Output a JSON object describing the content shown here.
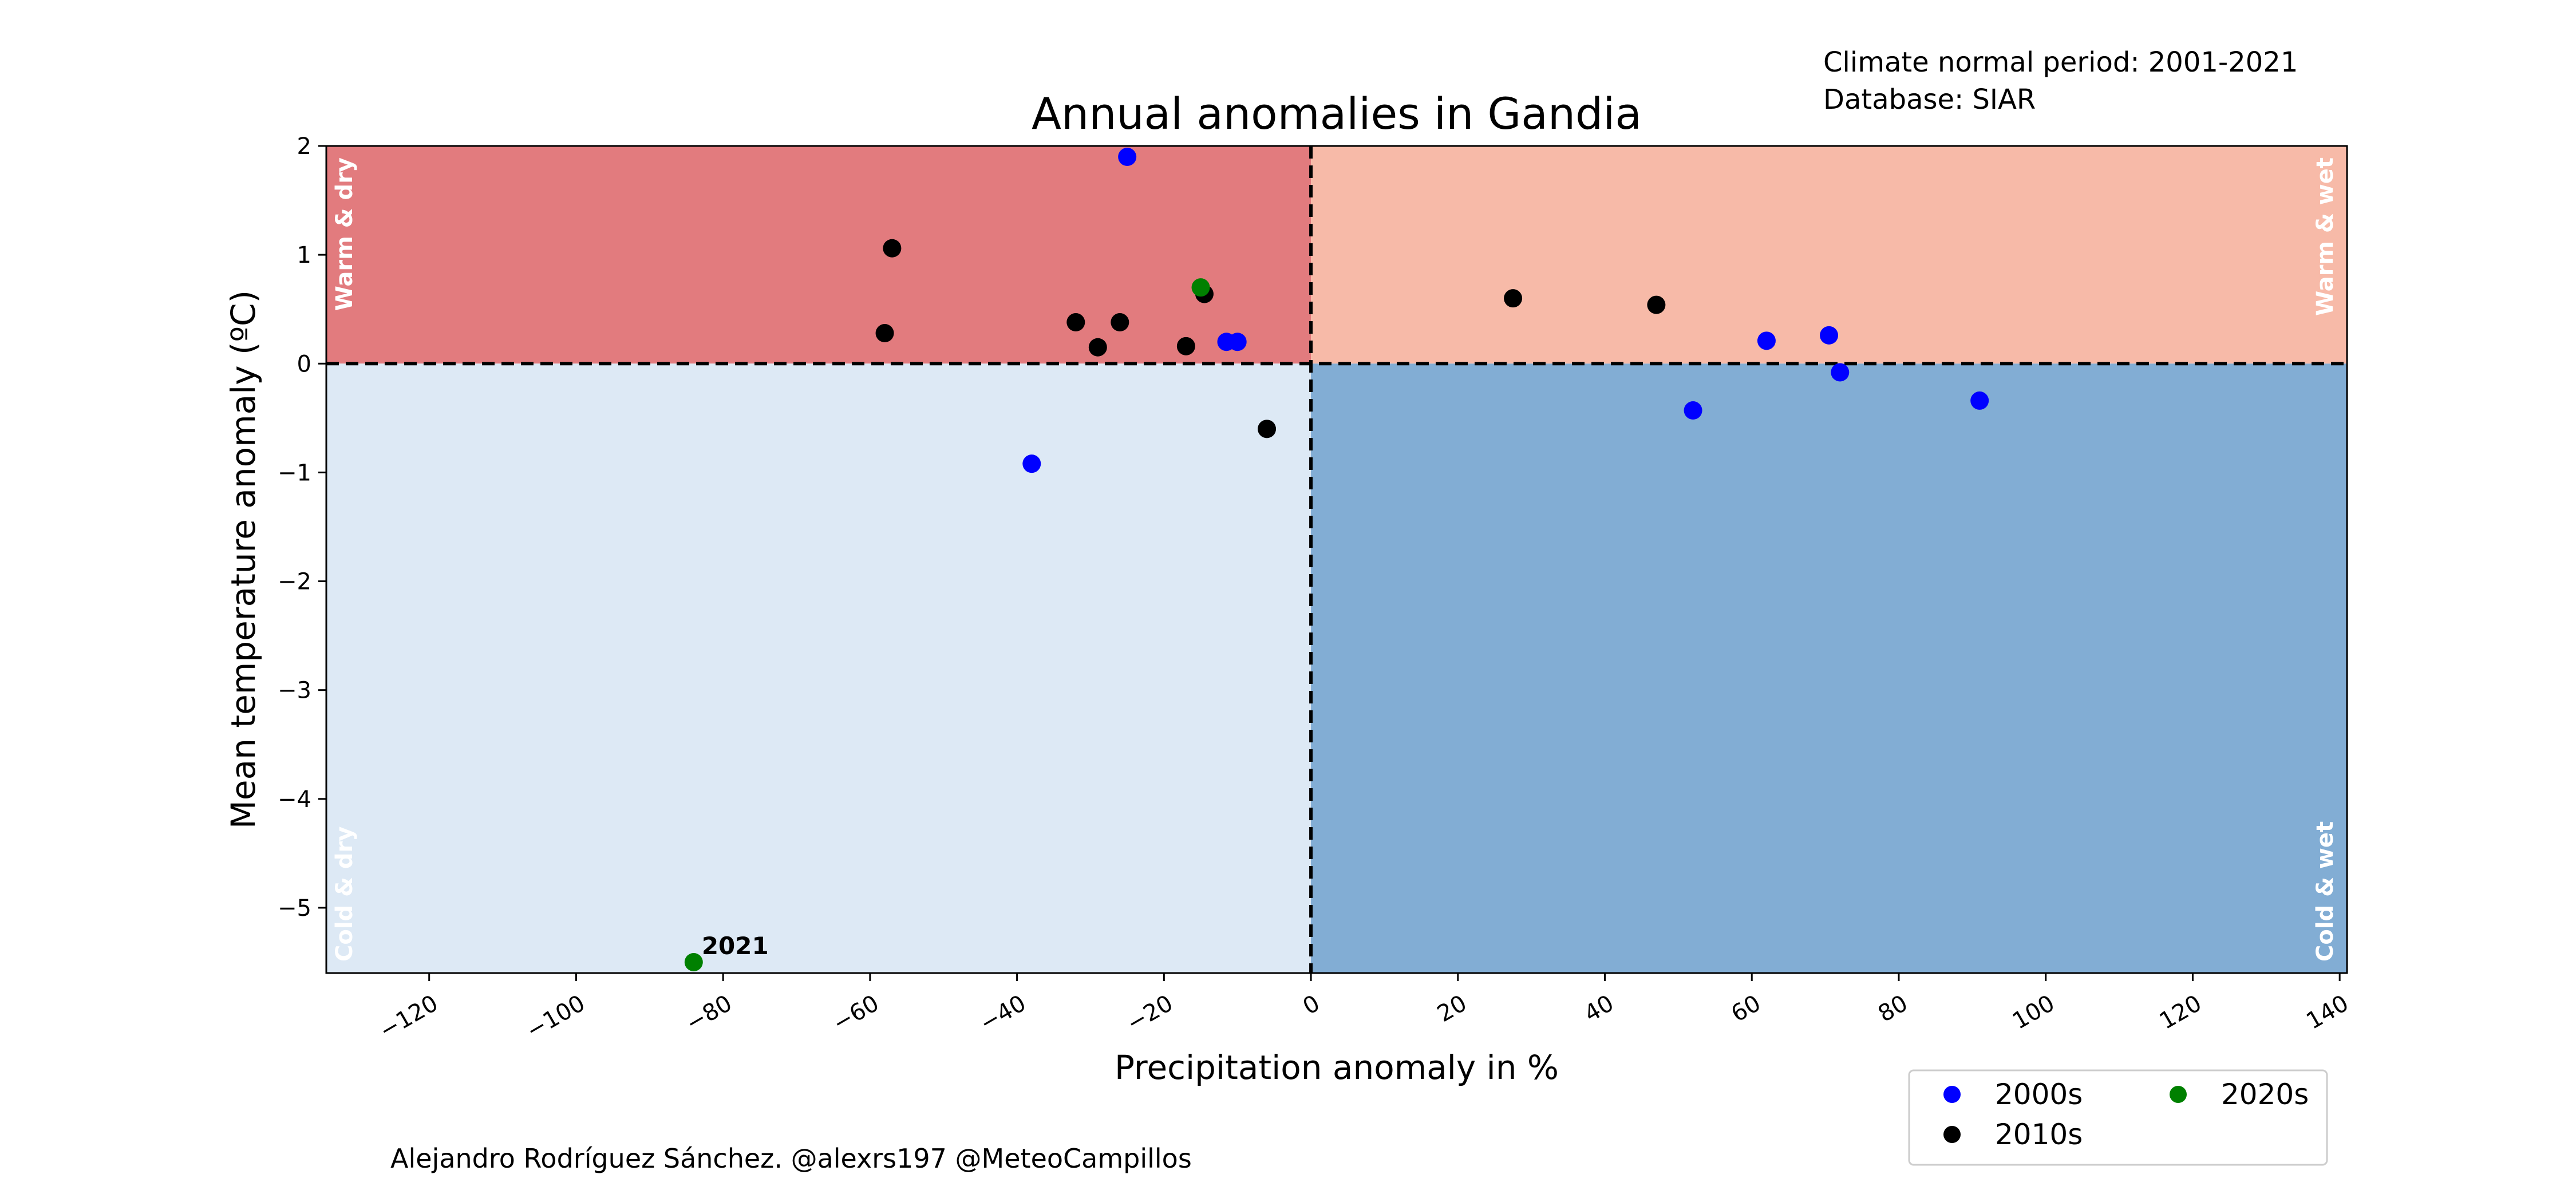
{
  "chart_data": {
    "type": "scatter",
    "title": "Annual anomalies in Gandia",
    "xlabel": "Precipitation anomaly in %",
    "ylabel": "Mean temperature anomaly (ºC)",
    "xlim": [
      -134,
      141
    ],
    "ylim": [
      -5.6,
      2.0
    ],
    "xticks": [
      -120,
      -100,
      -80,
      -60,
      -40,
      -20,
      0,
      20,
      40,
      60,
      80,
      100,
      120,
      140
    ],
    "yticks": [
      2,
      1,
      0,
      -1,
      -2,
      -3,
      -4,
      -5
    ],
    "xtick_labels": [
      "−120",
      "−100",
      "−80",
      "−60",
      "−40",
      "−20",
      "0",
      "20",
      "40",
      "60",
      "80",
      "100",
      "120",
      "140"
    ],
    "ytick_labels": [
      "2",
      "1",
      "0",
      "−1",
      "−2",
      "−3",
      "−4",
      "−5"
    ],
    "info_lines": [
      "Climate normal period: 2001-2021",
      "Database: SIAR"
    ],
    "credit": "Alejandro Rodríguez Sánchez. @alexrs197 @MeteoCampillos",
    "quadrants": {
      "warm_dry": {
        "label": "Warm & dry",
        "color": "#e27b7e"
      },
      "warm_wet": {
        "label": "Warm & wet",
        "color": "#f7baa8"
      },
      "cold_dry": {
        "label": "Cold & dry",
        "color": "#dde9f5"
      },
      "cold_wet": {
        "label": "Cold & wet",
        "color": "#82add4"
      }
    },
    "legend_position": "below-right",
    "legend_columns": 2,
    "series": [
      {
        "name": "2000s",
        "color": "#0000ff",
        "points": [
          [
            -25,
            1.9
          ],
          [
            -38,
            -0.92
          ],
          [
            -11.5,
            0.2
          ],
          [
            -10,
            0.2
          ],
          [
            52,
            -0.43
          ],
          [
            62,
            0.21
          ],
          [
            70.5,
            0.26
          ],
          [
            72,
            -0.08
          ],
          [
            91,
            -0.34
          ]
        ]
      },
      {
        "name": "2010s",
        "color": "#000000",
        "points": [
          [
            -57,
            1.06
          ],
          [
            -58,
            0.28
          ],
          [
            -32,
            0.38
          ],
          [
            -29,
            0.15
          ],
          [
            -26,
            0.38
          ],
          [
            -17,
            0.16
          ],
          [
            -14.5,
            0.64
          ],
          [
            -6,
            -0.6
          ],
          [
            27.5,
            0.6
          ],
          [
            47,
            0.54
          ]
        ]
      },
      {
        "name": "2020s",
        "color": "#008000",
        "points": [
          [
            -15,
            0.7
          ],
          [
            -84,
            -5.5
          ]
        ]
      }
    ],
    "annotations": [
      {
        "text": "2021",
        "x": -84,
        "y": -5.5
      }
    ]
  }
}
